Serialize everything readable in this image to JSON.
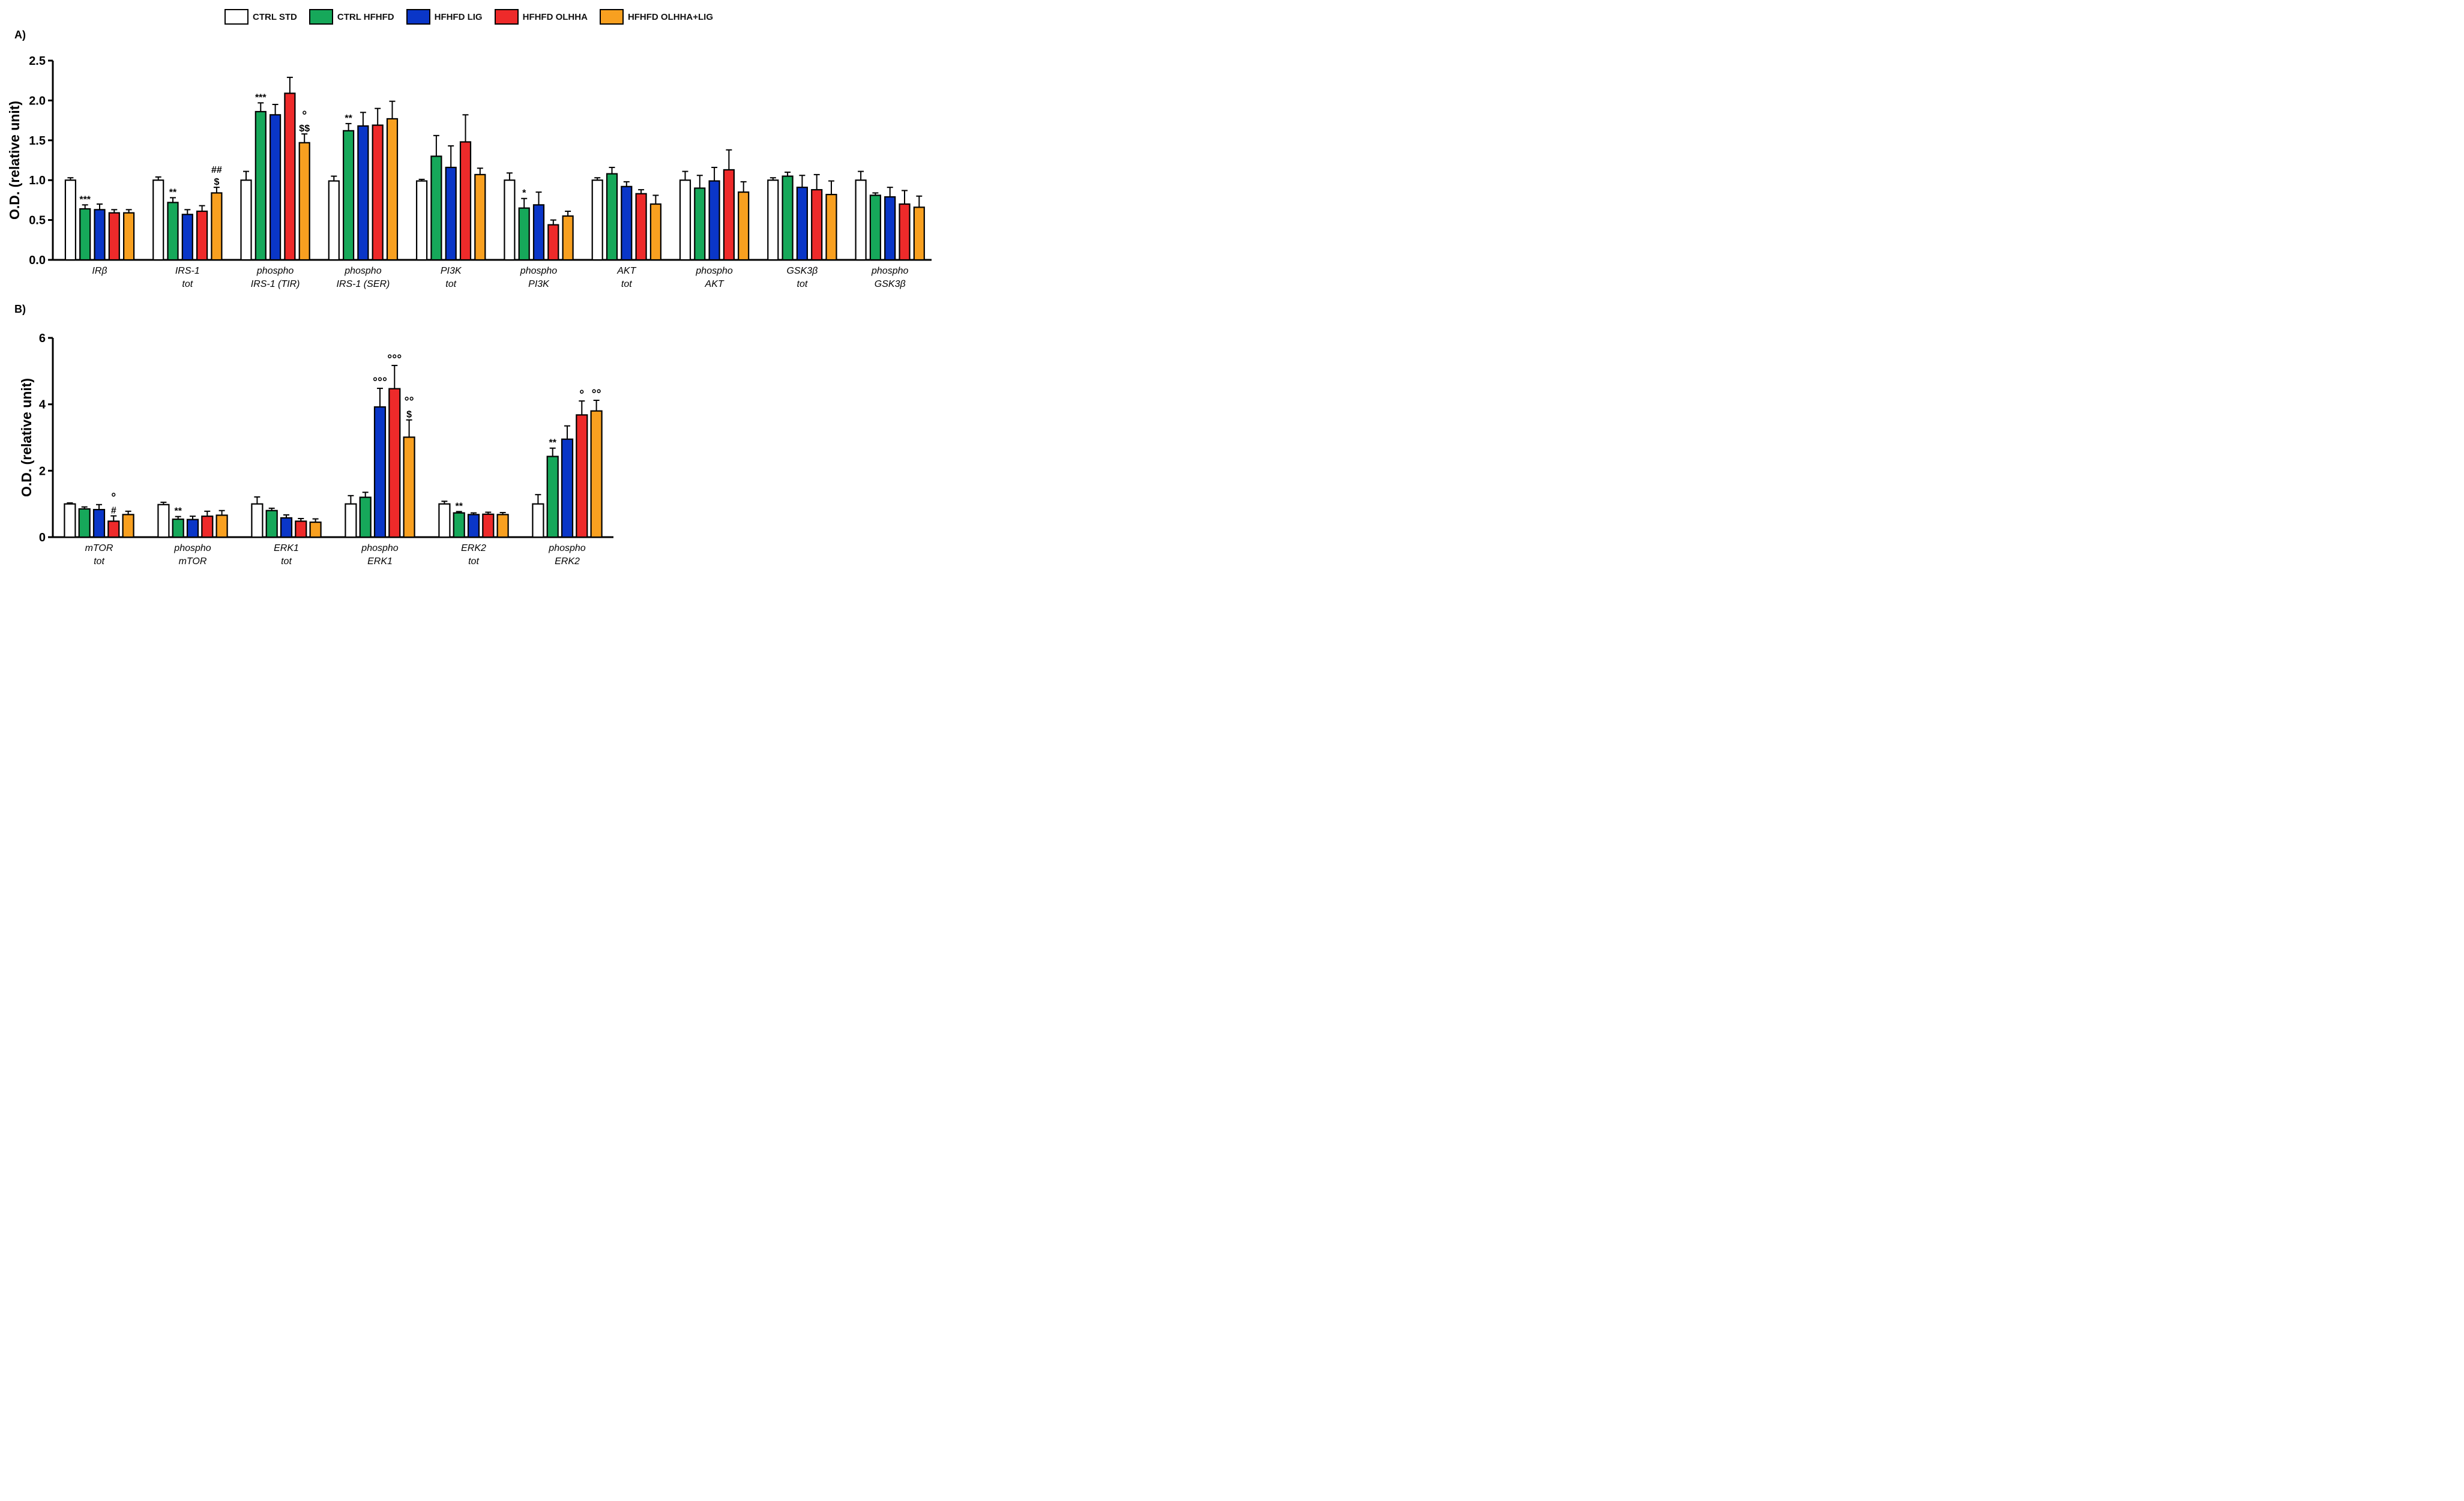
{
  "legend": [
    {
      "name": "CTRL STD",
      "color": "#ffffff"
    },
    {
      "name": "CTRL HFHFD",
      "color": "#16a85a"
    },
    {
      "name": "HFHFD LIG",
      "color": "#0a36c8"
    },
    {
      "name": "HFHFD OLHHA",
      "color": "#ee2a2a"
    },
    {
      "name": "HFHFD OLHHA+LIG",
      "color": "#f8a020"
    }
  ],
  "panels": {
    "a_label": "A)",
    "b_label": "B)"
  },
  "chart_data": [
    {
      "type": "bar",
      "panel": "A)",
      "ylabel": "O.D. (relative unit)",
      "ylim": [
        0,
        2.5
      ],
      "yticks": [
        "0.0",
        "0.5",
        "1.0",
        "1.5",
        "2.0",
        "2.5"
      ],
      "series_names": [
        "CTRL STD",
        "CTRL HFHFD",
        "HFHFD LIG",
        "HFHFD OLHHA",
        "HFHFD OLHHA+LIG"
      ],
      "groups": [
        {
          "label": [
            "IRβ"
          ],
          "values": [
            1.0,
            0.64,
            0.63,
            0.59,
            0.59
          ],
          "errors": [
            0.03,
            0.05,
            0.07,
            0.04,
            0.04
          ],
          "annotations": [
            {
              "bar": 1,
              "text": "***"
            }
          ]
        },
        {
          "label": [
            "IRS-1",
            "tot"
          ],
          "values": [
            1.0,
            0.72,
            0.57,
            0.61,
            0.84
          ],
          "errors": [
            0.04,
            0.06,
            0.06,
            0.07,
            0.07
          ],
          "annotations": [
            {
              "bar": 1,
              "text": "**"
            },
            {
              "bar": 4,
              "text": "$"
            },
            {
              "bar": 4,
              "text": "##"
            }
          ]
        },
        {
          "label": [
            "phospho",
            "IRS-1 (TIR)"
          ],
          "values": [
            1.0,
            1.86,
            1.82,
            2.09,
            1.47
          ],
          "errors": [
            0.11,
            0.11,
            0.13,
            0.2,
            0.11
          ],
          "annotations": [
            {
              "bar": 1,
              "text": "***"
            },
            {
              "bar": 4,
              "text": "$$"
            },
            {
              "bar": 4,
              "text": "°"
            }
          ]
        },
        {
          "label": [
            "phospho",
            "IRS-1 (SER)"
          ],
          "values": [
            0.99,
            1.62,
            1.68,
            1.69,
            1.77
          ],
          "errors": [
            0.06,
            0.09,
            0.17,
            0.21,
            0.22
          ],
          "annotations": [
            {
              "bar": 1,
              "text": "**"
            }
          ]
        },
        {
          "label": [
            "PI3K",
            "tot"
          ],
          "values": [
            0.99,
            1.3,
            1.16,
            1.48,
            1.07
          ],
          "errors": [
            0.02,
            0.26,
            0.27,
            0.34,
            0.08
          ],
          "annotations": []
        },
        {
          "label": [
            "phospho",
            "PI3K"
          ],
          "values": [
            1.0,
            0.65,
            0.69,
            0.44,
            0.55
          ],
          "errors": [
            0.09,
            0.12,
            0.16,
            0.06,
            0.06
          ],
          "annotations": [
            {
              "bar": 1,
              "text": "*"
            }
          ]
        },
        {
          "label": [
            "AKT",
            "tot"
          ],
          "values": [
            1.0,
            1.08,
            0.92,
            0.83,
            0.7
          ],
          "errors": [
            0.03,
            0.08,
            0.06,
            0.05,
            0.11
          ],
          "annotations": []
        },
        {
          "label": [
            "phospho",
            "AKT"
          ],
          "values": [
            1.0,
            0.9,
            0.99,
            1.13,
            0.85
          ],
          "errors": [
            0.11,
            0.16,
            0.17,
            0.25,
            0.13
          ],
          "annotations": []
        },
        {
          "label": [
            "GSK3β",
            "tot"
          ],
          "values": [
            1.0,
            1.05,
            0.91,
            0.88,
            0.82
          ],
          "errors": [
            0.03,
            0.05,
            0.15,
            0.19,
            0.17
          ],
          "annotations": []
        },
        {
          "label": [
            "phospho",
            "GSK3β"
          ],
          "values": [
            1.0,
            0.81,
            0.79,
            0.7,
            0.66
          ],
          "errors": [
            0.11,
            0.03,
            0.12,
            0.17,
            0.14
          ],
          "annotations": []
        }
      ]
    },
    {
      "type": "bar",
      "panel": "B)",
      "ylabel": "O.D. (relative unit)",
      "ylim": [
        0,
        6
      ],
      "yticks": [
        "0",
        "2",
        "4",
        "6"
      ],
      "series_names": [
        "CTRL STD",
        "CTRL HFHFD",
        "HFHFD LIG",
        "HFHFD OLHHA",
        "HFHFD OLHHA+LIG"
      ],
      "groups": [
        {
          "label": [
            "mTOR",
            "tot"
          ],
          "values": [
            1.0,
            0.85,
            0.83,
            0.48,
            0.68
          ],
          "errors": [
            0.03,
            0.06,
            0.15,
            0.16,
            0.1
          ],
          "annotations": [
            {
              "bar": 3,
              "text": "#"
            },
            {
              "bar": 3,
              "text": "°"
            }
          ]
        },
        {
          "label": [
            "phospho",
            "mTOR"
          ],
          "values": [
            0.98,
            0.54,
            0.53,
            0.63,
            0.66
          ],
          "errors": [
            0.07,
            0.08,
            0.1,
            0.15,
            0.14
          ],
          "annotations": [
            {
              "bar": 1,
              "text": "**"
            }
          ]
        },
        {
          "label": [
            "ERK1",
            "tot"
          ],
          "values": [
            1.0,
            0.8,
            0.58,
            0.48,
            0.45
          ],
          "errors": [
            0.21,
            0.07,
            0.09,
            0.08,
            0.1
          ],
          "annotations": []
        },
        {
          "label": [
            "phospho",
            "ERK1"
          ],
          "values": [
            1.0,
            1.2,
            3.92,
            4.47,
            3.01
          ],
          "errors": [
            0.25,
            0.15,
            0.56,
            0.7,
            0.52
          ],
          "annotations": [
            {
              "bar": 2,
              "text": "°°°"
            },
            {
              "bar": 3,
              "text": "°°°"
            },
            {
              "bar": 4,
              "text": "$"
            },
            {
              "bar": 4,
              "text": "°°"
            }
          ]
        },
        {
          "label": [
            "ERK2",
            "tot"
          ],
          "values": [
            1.0,
            0.73,
            0.68,
            0.69,
            0.68
          ],
          "errors": [
            0.08,
            0.04,
            0.05,
            0.06,
            0.06
          ],
          "annotations": [
            {
              "bar": 1,
              "text": "**"
            }
          ]
        },
        {
          "label": [
            "phospho",
            "ERK2"
          ],
          "values": [
            1.0,
            2.43,
            2.95,
            3.68,
            3.8
          ],
          "errors": [
            0.28,
            0.25,
            0.4,
            0.42,
            0.32
          ],
          "annotations": [
            {
              "bar": 1,
              "text": "**"
            },
            {
              "bar": 3,
              "text": "°"
            },
            {
              "bar": 4,
              "text": "°°"
            }
          ]
        }
      ]
    }
  ]
}
